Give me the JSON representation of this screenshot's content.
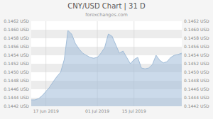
{
  "chart_data": {
    "type": "area",
    "title": "CNY/USD Chart | 31 D",
    "subtitle": "forexchanges.com",
    "categories": [
      null,
      null,
      null,
      null,
      "17 Jun 2019",
      null,
      null,
      null,
      null,
      null,
      null,
      null,
      null,
      null,
      null,
      null,
      null,
      null,
      "01 Jul 2019",
      null,
      null,
      null,
      null,
      null,
      null,
      null,
      null,
      null,
      "15 Jul 2019",
      null,
      null,
      null,
      null,
      null,
      null,
      null,
      null,
      null,
      null,
      null,
      null,
      null
    ],
    "values": [
      0.14435,
      0.14435,
      0.14438,
      0.14445,
      0.14455,
      0.14465,
      0.14478,
      0.1449,
      0.145,
      0.1453,
      0.14598,
      0.1459,
      0.14568,
      0.14555,
      0.14545,
      0.1454,
      0.14535,
      0.14533,
      0.14535,
      0.14545,
      0.14558,
      0.1459,
      0.14585,
      0.14565,
      0.14545,
      0.1455,
      0.14535,
      0.1452,
      0.1453,
      0.14535,
      0.1451,
      0.14508,
      0.1451,
      0.14518,
      0.1454,
      0.14528,
      0.14522,
      0.14525,
      0.14535,
      0.1454,
      0.14542,
      0.14545
    ],
    "color": "#a0bcd8",
    "ylim": [
      0.1442,
      0.1462
    ],
    "yticks": [
      {
        "value": 0.1442,
        "label": "0.1442 USD"
      },
      {
        "value": 0.1444,
        "label": "0.1444 USD"
      },
      {
        "value": 0.1446,
        "label": "0.1446 USD"
      },
      {
        "value": 0.1448,
        "label": "0.1448 USD"
      },
      {
        "value": 0.145,
        "label": "0.1450 USD"
      },
      {
        "value": 0.1452,
        "label": "0.1452 USD"
      },
      {
        "value": 0.1454,
        "label": "0.1454 USD"
      },
      {
        "value": 0.1456,
        "label": "0.1456 USD"
      },
      {
        "value": 0.1458,
        "label": "0.1458 USD"
      },
      {
        "value": 0.146,
        "label": "0.1460 USD"
      },
      {
        "value": 0.1462,
        "label": "0.1462 USD"
      }
    ],
    "grid": true
  }
}
